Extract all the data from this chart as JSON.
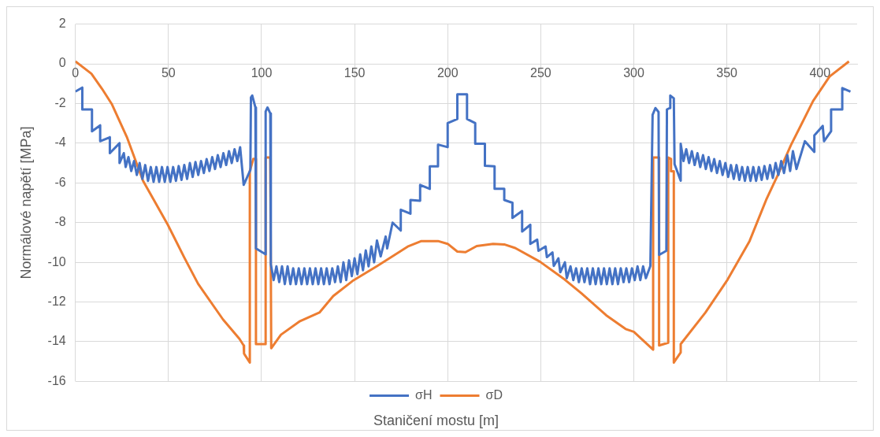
{
  "chart_data": {
    "type": "line",
    "xlabel": "Staničení mostu [m]",
    "ylabel": "Normálové napětí [MPa]",
    "xlim": [
      0,
      420
    ],
    "ylim": [
      -16,
      2
    ],
    "xticks": [
      0,
      50,
      100,
      150,
      200,
      250,
      300,
      350,
      400
    ],
    "yticks": [
      -16,
      -14,
      -12,
      -10,
      -8,
      -6,
      -4,
      -2,
      0,
      2
    ],
    "grid": true,
    "legend": "bottom",
    "series": [
      {
        "name": "σH",
        "color": "#4472c4",
        "x": [
          0,
          3.7,
          3.7,
          8.9,
          8.9,
          13.3,
          13.3,
          18.5,
          18.5,
          23.7,
          23.7,
          26,
          27,
          28.5,
          30,
          31.5,
          33,
          34.5,
          36,
          37.5,
          39,
          40.5,
          42,
          43.5,
          45,
          46.5,
          48,
          49.5,
          51,
          52.5,
          54,
          55.5,
          57,
          58.5,
          60,
          61.5,
          63,
          64.5,
          66,
          67.5,
          69,
          70.5,
          72,
          73.5,
          75,
          76.5,
          78,
          79.5,
          81,
          82.5,
          84,
          85.5,
          87,
          88.5,
          90.4,
          94,
          94.3,
          95,
          96.7,
          97,
          102.2,
          102.2,
          103.2,
          104.7,
          105,
          106.5,
          108,
          109.5,
          111,
          112.5,
          114,
          115.5,
          117,
          118.5,
          120,
          121.5,
          123,
          124.5,
          126,
          127.5,
          129,
          130.5,
          132,
          133.5,
          135,
          136.5,
          138,
          139.5,
          141,
          142.5,
          144,
          145.5,
          147,
          148.5,
          150,
          151.5,
          153,
          154.5,
          156,
          157.5,
          159,
          160.5,
          162,
          164,
          166.7,
          167.5,
          170.4,
          174.8,
          174.8,
          180,
          180,
          185.2,
          185.2,
          190.4,
          190.4,
          194.8,
          194.8,
          200,
          200,
          205.2,
          205.2,
          210.4,
          210.4,
          214.8,
          214.8,
          220,
          220,
          225.2,
          225.2,
          230.4,
          230.4,
          234.8,
          234.8,
          240,
          240,
          244.4,
          244.4,
          248.1,
          248.8,
          252.6,
          253.3,
          256.3,
          257,
          259.5,
          260.5,
          263,
          264,
          266,
          267.5,
          269,
          270.5,
          272,
          273.5,
          275,
          276.5,
          278,
          279.5,
          281,
          282.5,
          284,
          285.5,
          287,
          288.5,
          290,
          291.5,
          293,
          294.5,
          296,
          297.5,
          299,
          300.5,
          302,
          303.5,
          305,
          306.5,
          308.9,
          310.1,
          311.6,
          313.3,
          313.6,
          317.5,
          317.8,
          319.3,
          319.6,
          321.5,
          321.9,
          325.2,
          325.2,
          326.7,
          328.2,
          329.7,
          331.2,
          332.7,
          334.2,
          335.7,
          337.2,
          338.7,
          340.2,
          341.7,
          343.2,
          344.7,
          346.2,
          347.7,
          349.2,
          350.7,
          352.2,
          353.7,
          355.2,
          356.7,
          358.2,
          359.7,
          361.2,
          362.7,
          364.2,
          365.7,
          367.2,
          368.7,
          370.2,
          371.7,
          373.2,
          374.7,
          376.2,
          377.7,
          379.2,
          380.7,
          382.5,
          384,
          385.5,
          387.4,
          391.9,
          397,
          397,
          401.5,
          402.2,
          406,
          406,
          412,
          412,
          416.4
        ],
        "values": [
          -1.4,
          -1.2,
          -2.3,
          -2.3,
          -3.4,
          -3.1,
          -3.9,
          -3.7,
          -4.5,
          -4.0,
          -5.0,
          -4.5,
          -5.2,
          -4.7,
          -5.4,
          -4.9,
          -5.6,
          -5.0,
          -5.8,
          -5.1,
          -5.9,
          -5.2,
          -5.95,
          -5.2,
          -5.95,
          -5.2,
          -5.95,
          -5.2,
          -5.95,
          -5.2,
          -5.9,
          -5.15,
          -5.85,
          -5.1,
          -5.8,
          -5.0,
          -5.7,
          -4.95,
          -5.6,
          -4.9,
          -5.5,
          -4.8,
          -5.4,
          -4.7,
          -5.3,
          -4.6,
          -5.2,
          -4.5,
          -5.1,
          -4.4,
          -5.0,
          -4.3,
          -4.9,
          -4.2,
          -6.1,
          -5.35,
          -1.7,
          -1.6,
          -2.2,
          -9.3,
          -9.6,
          -2.4,
          -2.2,
          -2.5,
          -10.1,
          -10.9,
          -10.2,
          -11.0,
          -10.2,
          -11.1,
          -10.2,
          -11.1,
          -10.3,
          -11.1,
          -10.3,
          -11.1,
          -10.3,
          -11.1,
          -10.3,
          -11.1,
          -10.3,
          -11.1,
          -10.3,
          -11.1,
          -10.3,
          -11.1,
          -10.3,
          -11.0,
          -10.2,
          -11.0,
          -10.0,
          -10.9,
          -9.9,
          -10.7,
          -9.8,
          -10.6,
          -9.6,
          -10.4,
          -9.4,
          -10.2,
          -9.2,
          -10.0,
          -8.9,
          -9.7,
          -8.7,
          -9.3,
          -8.0,
          -8.4,
          -7.35,
          -7.55,
          -6.86,
          -6.9,
          -6.1,
          -6.3,
          -5.17,
          -5.17,
          -4.07,
          -4.2,
          -2.99,
          -2.78,
          -1.54,
          -1.54,
          -2.78,
          -2.99,
          -4.03,
          -4.03,
          -5.14,
          -5.17,
          -6.3,
          -6.3,
          -6.86,
          -7.0,
          -7.76,
          -7.42,
          -8.45,
          -8.11,
          -9.07,
          -8.86,
          -9.42,
          -9.2,
          -9.74,
          -9.5,
          -10.18,
          -9.8,
          -10.5,
          -10.0,
          -10.8,
          -10.2,
          -10.9,
          -10.3,
          -11.0,
          -10.3,
          -11.0,
          -10.3,
          -11.1,
          -10.3,
          -11.1,
          -10.3,
          -11.1,
          -10.3,
          -11.1,
          -10.3,
          -11.1,
          -10.3,
          -11.1,
          -10.3,
          -11.0,
          -10.3,
          -11.0,
          -10.3,
          -10.9,
          -10.2,
          -10.9,
          -10.2,
          -10.8,
          -10.18,
          -2.57,
          -2.23,
          -2.43,
          -9.63,
          -9.42,
          -2.3,
          -2.23,
          -1.6,
          -1.74,
          -5.06,
          -5.89,
          -4.03,
          -4.9,
          -4.3,
          -5.0,
          -4.4,
          -5.1,
          -4.5,
          -5.2,
          -4.6,
          -5.3,
          -4.7,
          -5.4,
          -4.8,
          -5.5,
          -4.9,
          -5.6,
          -5.0,
          -5.7,
          -5.1,
          -5.8,
          -5.1,
          -5.85,
          -5.2,
          -5.9,
          -5.2,
          -5.9,
          -5.2,
          -5.9,
          -5.2,
          -5.85,
          -5.15,
          -5.8,
          -5.1,
          -5.75,
          -5.0,
          -5.6,
          -4.9,
          -5.5,
          -4.6,
          -5.4,
          -4.4,
          -5.3,
          -3.9,
          -4.44,
          -3.61,
          -3.13,
          -3.9,
          -3.4,
          -2.3,
          -2.3,
          -1.22,
          -1.4
        ]
      },
      {
        "name": "σD",
        "color": "#ed7d31",
        "x": [
          0,
          8.6,
          14.3,
          19.5,
          27.6,
          36.3,
          49.6,
          58.5,
          65.9,
          79.3,
          88.1,
          90.4,
          90.6,
          93.7,
          93.7,
          95.6,
          97,
          97,
          102.2,
          102.2,
          104.7,
          105.2,
          110.4,
          120.7,
          131.1,
          138.5,
          148.9,
          162.2,
          178.5,
          185.9,
          194.8,
          200,
          205.2,
          209.6,
          215.6,
          224.4,
          230.4,
          236.3,
          249.6,
          262.9,
          271.8,
          285.2,
          295.6,
          300,
          310.4,
          310.4,
          313.6,
          313.6,
          318.5,
          318.5,
          320,
          320,
          321.5,
          321.5,
          325.2,
          325.2,
          338.5,
          350.4,
          362.2,
          371.1,
          377,
          384.4,
          396.3,
          405.2,
          415.6
        ],
        "values": [
          0.12,
          -0.5,
          -1.26,
          -2.02,
          -3.68,
          -5.89,
          -8.1,
          -9.76,
          -11.08,
          -12.88,
          -13.85,
          -14.19,
          -14.6,
          -15.05,
          -5.41,
          -4.79,
          -4.79,
          -14.12,
          -14.12,
          -4.72,
          -4.72,
          -14.33,
          -13.65,
          -12.96,
          -12.53,
          -11.7,
          -10.94,
          -10.18,
          -9.21,
          -8.93,
          -8.93,
          -9.07,
          -9.46,
          -9.49,
          -9.18,
          -9.07,
          -9.1,
          -9.28,
          -9.97,
          -10.87,
          -11.56,
          -12.67,
          -13.36,
          -13.5,
          -14.4,
          -4.72,
          -4.72,
          -14.19,
          -14.05,
          -4.72,
          -4.79,
          -5.41,
          -5.41,
          -15.05,
          -14.54,
          -14.12,
          -12.53,
          -10.87,
          -8.93,
          -6.86,
          -5.68,
          -4.1,
          -1.88,
          -0.64,
          0.12
        ]
      }
    ]
  }
}
